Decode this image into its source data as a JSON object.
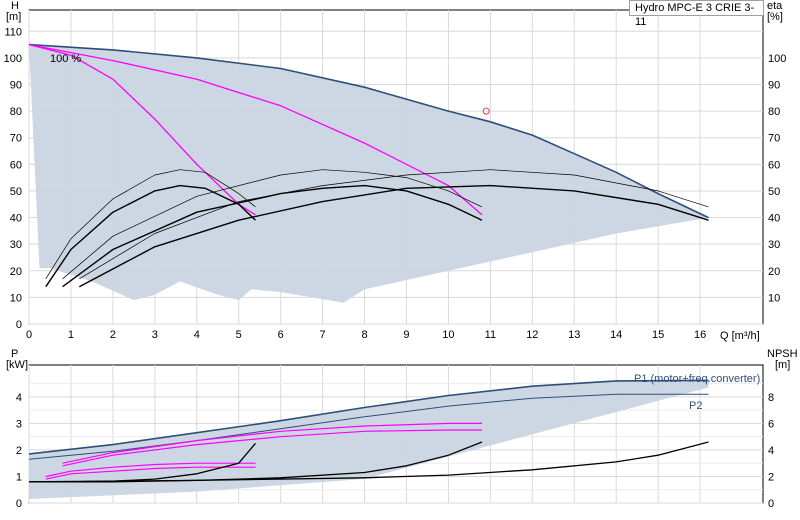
{
  "chart_data": [
    {
      "type": "line",
      "title": "Hydro MPC-E 3 CRIE 3-11",
      "xlabel": "Q [m³/h]",
      "ylabel_left": [
        "H",
        "[m]"
      ],
      "ylabel_right": [
        "eta",
        "[%]"
      ],
      "xlim": [
        0,
        17.5
      ],
      "ylim": [
        0,
        118
      ],
      "x_ticks": [
        0,
        1,
        2,
        3,
        4,
        5,
        6,
        7,
        8,
        9,
        10,
        11,
        12,
        13,
        14,
        15,
        16
      ],
      "y_ticks_left": [
        0,
        10,
        20,
        30,
        40,
        50,
        60,
        70,
        80,
        90,
        100,
        110
      ],
      "y_ticks_right": [
        10,
        20,
        30,
        40,
        50,
        60,
        70,
        80,
        90,
        100
      ],
      "grid": true,
      "annotation": "100 %",
      "colors": {
        "region": "#c9d5e1",
        "envelope": "#2e4e7a",
        "head": "#ff00ff",
        "eta": "#000000",
        "marker": "#d84a4a"
      },
      "operating_region": [
        [
          0,
          105
        ],
        [
          2,
          103
        ],
        [
          4,
          100
        ],
        [
          6,
          96
        ],
        [
          8,
          89
        ],
        [
          10,
          80
        ],
        [
          11,
          76
        ],
        [
          12,
          71
        ],
        [
          13,
          64
        ],
        [
          14,
          57
        ],
        [
          15,
          49
        ],
        [
          16.2,
          40
        ],
        [
          14,
          34
        ],
        [
          12,
          27
        ],
        [
          10,
          20
        ],
        [
          8,
          13
        ],
        [
          7.5,
          8
        ],
        [
          6,
          12
        ],
        [
          5.3,
          13
        ],
        [
          5,
          9
        ],
        [
          4.5,
          11
        ],
        [
          3.6,
          16
        ],
        [
          3,
          11
        ],
        [
          2.5,
          9
        ],
        [
          1.5,
          16
        ],
        [
          0.5,
          21
        ],
        [
          0.25,
          21
        ]
      ],
      "series": [
        {
          "role": "max-head",
          "points": [
            [
              0,
              105
            ],
            [
              2,
              103
            ],
            [
              4,
              100
            ],
            [
              6,
              96
            ],
            [
              8,
              89
            ],
            [
              10,
              80
            ],
            [
              11,
              76
            ],
            [
              12,
              71
            ],
            [
              13,
              64
            ],
            [
              14,
              57
            ],
            [
              15,
              49
            ],
            [
              16.2,
              40
            ]
          ]
        },
        {
          "role": "head",
          "points": [
            [
              0,
              105
            ],
            [
              2,
              99
            ],
            [
              4,
              92
            ],
            [
              6,
              82
            ],
            [
              8,
              68
            ],
            [
              10,
              52
            ],
            [
              10.8,
              41
            ]
          ]
        },
        {
          "role": "head",
          "points": [
            [
              0,
              105
            ],
            [
              1,
              101
            ],
            [
              2,
              92
            ],
            [
              3,
              77
            ],
            [
              4,
              60
            ],
            [
              5,
              45
            ],
            [
              5.4,
              41
            ]
          ]
        },
        {
          "role": "eta",
          "points": [
            [
              0.4,
              14
            ],
            [
              1,
              28
            ],
            [
              2,
              42
            ],
            [
              3,
              50
            ],
            [
              3.6,
              52
            ],
            [
              4.2,
              51
            ],
            [
              5,
              45
            ],
            [
              5.4,
              39
            ]
          ]
        },
        {
          "role": "eta-thin",
          "points": [
            [
              0.4,
              17
            ],
            [
              1,
              32
            ],
            [
              2,
              47
            ],
            [
              3,
              56
            ],
            [
              3.6,
              58
            ],
            [
              4.2,
              57
            ],
            [
              5,
              49
            ],
            [
              5.4,
              44
            ]
          ]
        },
        {
          "role": "eta",
          "points": [
            [
              0.8,
              14
            ],
            [
              2,
              28
            ],
            [
              4,
              42
            ],
            [
              6,
              49
            ],
            [
              7,
              51
            ],
            [
              8,
              52
            ],
            [
              9,
              50
            ],
            [
              10,
              45
            ],
            [
              10.8,
              39
            ]
          ]
        },
        {
          "role": "eta-thin",
          "points": [
            [
              0.8,
              17
            ],
            [
              2,
              33
            ],
            [
              4,
              48
            ],
            [
              6,
              56
            ],
            [
              7,
              58
            ],
            [
              8,
              57
            ],
            [
              9,
              55
            ],
            [
              10,
              50
            ],
            [
              10.8,
              44
            ]
          ]
        },
        {
          "role": "eta",
          "points": [
            [
              1.2,
              14
            ],
            [
              3,
              29
            ],
            [
              5,
              39
            ],
            [
              7,
              46
            ],
            [
              9,
              51
            ],
            [
              11,
              52
            ],
            [
              13,
              50
            ],
            [
              15,
              45
            ],
            [
              16.2,
              39
            ]
          ]
        },
        {
          "role": "eta-thin",
          "points": [
            [
              1.2,
              17
            ],
            [
              3,
              34
            ],
            [
              5,
              46
            ],
            [
              7,
              52
            ],
            [
              9,
              56
            ],
            [
              11,
              58
            ],
            [
              13,
              56
            ],
            [
              15,
              50
            ],
            [
              16.2,
              44
            ]
          ]
        }
      ],
      "markers": [
        {
          "x": 10.9,
          "y": 80
        }
      ]
    },
    {
      "type": "line",
      "ylabel_left": [
        "P",
        "[kW]"
      ],
      "ylabel_right": [
        "NPSH",
        "[m]"
      ],
      "xlim": [
        0,
        17.5
      ],
      "ylim": [
        0,
        5.2
      ],
      "y_ticks_left": [
        0,
        1,
        2,
        3,
        4
      ],
      "y_ticks_right": [
        0,
        2,
        4,
        6,
        8
      ],
      "grid": true,
      "series": [
        {
          "name": "P1 (motor+freq.converter)",
          "role": "p1",
          "points": [
            [
              0,
              1.85
            ],
            [
              2,
              2.2
            ],
            [
              4,
              2.65
            ],
            [
              6,
              3.1
            ],
            [
              8,
              3.6
            ],
            [
              10,
              4.05
            ],
            [
              12,
              4.4
            ],
            [
              14,
              4.6
            ],
            [
              16.2,
              4.62
            ]
          ]
        },
        {
          "name": "P2",
          "role": "p2",
          "points": [
            [
              0,
              1.65
            ],
            [
              2,
              1.95
            ],
            [
              4,
              2.35
            ],
            [
              6,
              2.8
            ],
            [
              8,
              3.25
            ],
            [
              10,
              3.65
            ],
            [
              12,
              3.95
            ],
            [
              14,
              4.1
            ],
            [
              16.2,
              4.1
            ]
          ]
        },
        {
          "role": "pw-mag",
          "points": [
            [
              0.8,
              1.5
            ],
            [
              2,
              1.9
            ],
            [
              4,
              2.35
            ],
            [
              6,
              2.7
            ],
            [
              8,
              2.9
            ],
            [
              10,
              3.0
            ],
            [
              10.8,
              3.0
            ]
          ]
        },
        {
          "role": "pw-mag",
          "points": [
            [
              0.8,
              1.4
            ],
            [
              2,
              1.8
            ],
            [
              4,
              2.2
            ],
            [
              6,
              2.5
            ],
            [
              8,
              2.7
            ],
            [
              10,
              2.75
            ],
            [
              10.8,
              2.75
            ]
          ]
        },
        {
          "role": "pw-mag",
          "points": [
            [
              0.4,
              1.0
            ],
            [
              1,
              1.2
            ],
            [
              2,
              1.35
            ],
            [
              3,
              1.45
            ],
            [
              4,
              1.5
            ],
            [
              5,
              1.5
            ],
            [
              5.4,
              1.5
            ]
          ]
        },
        {
          "role": "pw-mag",
          "points": [
            [
              0.4,
              0.9
            ],
            [
              1,
              1.1
            ],
            [
              2,
              1.2
            ],
            [
              3,
              1.3
            ],
            [
              4,
              1.35
            ],
            [
              5,
              1.35
            ],
            [
              5.4,
              1.35
            ]
          ]
        },
        {
          "role": "npsh",
          "points": [
            [
              0,
              0.8
            ],
            [
              1,
              0.8
            ],
            [
              2,
              0.82
            ],
            [
              3,
              0.9
            ],
            [
              4,
              1.1
            ],
            [
              5,
              1.5
            ],
            [
              5.4,
              2.25
            ]
          ]
        },
        {
          "role": "npsh",
          "points": [
            [
              0,
              0.8
            ],
            [
              2,
              0.8
            ],
            [
              4,
              0.85
            ],
            [
              6,
              0.95
            ],
            [
              8,
              1.15
            ],
            [
              9,
              1.4
            ],
            [
              10,
              1.8
            ],
            [
              10.8,
              2.3
            ]
          ]
        },
        {
          "role": "npsh",
          "points": [
            [
              0,
              0.8
            ],
            [
              4,
              0.85
            ],
            [
              8,
              0.95
            ],
            [
              10,
              1.05
            ],
            [
              12,
              1.25
            ],
            [
              14,
              1.55
            ],
            [
              15,
              1.8
            ],
            [
              16.2,
              2.3
            ]
          ]
        }
      ]
    }
  ]
}
